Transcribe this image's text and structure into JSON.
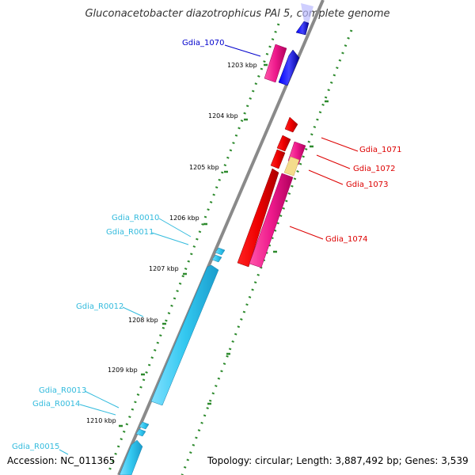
{
  "title": "Gluconacetobacter diazotrophicus PAl 5, complete genome",
  "accession": "Accession: NC_011365",
  "topology": "Topology: circular; Length: 3,887,492 bp; Genes: 3,539",
  "colors": {
    "backbone": "#888888",
    "tick": "#2d8a2d",
    "blue": "#0000dd",
    "red": "#ee0000",
    "pink": "#ee1a8c",
    "tan": "#f4dc8c",
    "cyan": "#33c8f0"
  },
  "kbp_labels": [
    "1203 kbp",
    "1204 kbp",
    "1205 kbp",
    "1206 kbp",
    "1207 kbp",
    "1208 kbp",
    "1209 kbp",
    "1210 kbp"
  ],
  "gene_labels": [
    {
      "text": "Gdia_1070",
      "color": "#0000cc"
    },
    {
      "text": "Gdia_1071",
      "color": "#dd0000"
    },
    {
      "text": "Gdia_1072",
      "color": "#dd0000"
    },
    {
      "text": "Gdia_1073",
      "color": "#dd0000"
    },
    {
      "text": "Gdia_1074",
      "color": "#dd0000"
    },
    {
      "text": "Gdia_R0010",
      "color": "#33bbdd"
    },
    {
      "text": "Gdia_R0011",
      "color": "#33bbdd"
    },
    {
      "text": "Gdia_R0012",
      "color": "#33bbdd"
    },
    {
      "text": "Gdia_R0013",
      "color": "#33bbdd"
    },
    {
      "text": "Gdia_R0014",
      "color": "#33bbdd"
    },
    {
      "text": "Gdia_R0015",
      "color": "#33bbdd"
    }
  ]
}
